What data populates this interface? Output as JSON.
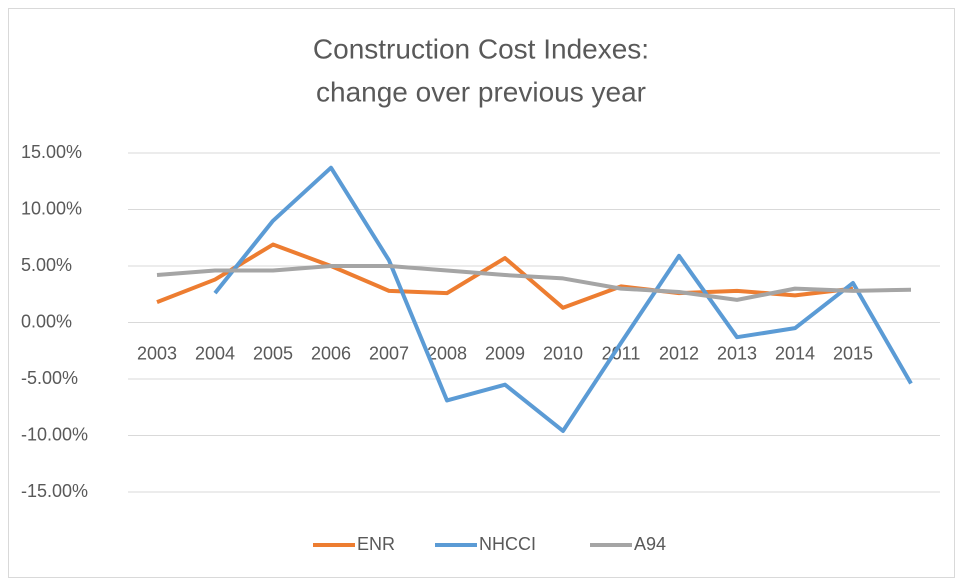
{
  "chart_data": {
    "type": "line",
    "title": [
      "Construction Cost Indexes:",
      "change over previous year"
    ],
    "categories": [
      "2003",
      "2004",
      "2005",
      "2006",
      "2007",
      "2008",
      "2009",
      "2010",
      "2011",
      "2012",
      "2013",
      "2014",
      "2015",
      null
    ],
    "series": [
      {
        "name": "ENR",
        "color": "#ed7d31",
        "values": [
          1.8,
          3.8,
          6.9,
          5.0,
          2.8,
          2.6,
          5.7,
          1.3,
          3.2,
          2.6,
          2.8,
          2.4,
          3.0,
          null
        ]
      },
      {
        "name": "NHCCI",
        "color": "#5b9bd5",
        "values": [
          null,
          2.6,
          9.0,
          13.7,
          5.5,
          -6.9,
          -5.5,
          -9.6,
          -1.8,
          5.9,
          -1.3,
          -0.5,
          3.5,
          -5.4
        ]
      },
      {
        "name": "A94",
        "color": "#a5a5a5",
        "values": [
          4.2,
          4.6,
          4.6,
          5.0,
          5.0,
          4.6,
          4.2,
          3.9,
          3.0,
          2.7,
          2.0,
          3.0,
          2.8,
          2.9
        ]
      }
    ],
    "ylim": [
      -15,
      15
    ],
    "yticks": [
      {
        "value": -15,
        "label": "-15.00%"
      },
      {
        "value": -10,
        "label": "-10.00%"
      },
      {
        "value": -5,
        "label": "-5.00%"
      },
      {
        "value": 0,
        "label": "0.00%"
      },
      {
        "value": 5,
        "label": "5.00%"
      },
      {
        "value": 10,
        "label": "10.00%"
      },
      {
        "value": 15,
        "label": "15.00%"
      }
    ],
    "grid": true,
    "legend": "bottom"
  }
}
